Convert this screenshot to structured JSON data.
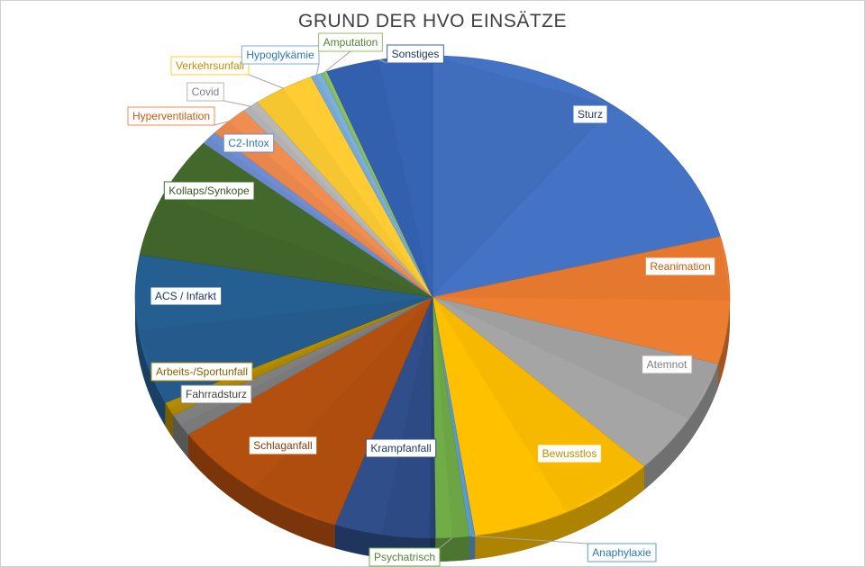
{
  "chart_data": {
    "type": "pie",
    "title": "GRUND DER HVO EINSÄTZE",
    "series": [
      {
        "name": "Sturz",
        "value": 69,
        "color": "#4472C4",
        "label_color": "#1F3864"
      },
      {
        "name": "Reanimation",
        "value": 28,
        "color": "#ED7D31",
        "label_color": "#C55A11"
      },
      {
        "name": "Atemnot",
        "value": 26,
        "color": "#A5A5A5",
        "label_color": "#7F7F7F"
      },
      {
        "name": "Bewusstlos",
        "value": 34,
        "color": "#FFC000",
        "label_color": "#BF8F00"
      },
      {
        "name": "Anaphylaxie",
        "value": 1,
        "color": "#5B9BD5",
        "label_color": "#2E75B6"
      },
      {
        "name": "Psychatrisch",
        "value": 6,
        "color": "#70AD47",
        "label_color": "#548235"
      },
      {
        "name": "",
        "value": 1,
        "color": "#264478",
        "label_color": "#264478"
      },
      {
        "name": "Krampfanfall",
        "value": 17,
        "color": "#2F4E8A",
        "label_color": "#1F3864"
      },
      {
        "name": "Schlaganfall",
        "value": 33,
        "color": "#B4500F",
        "label_color": "#843C0C"
      },
      {
        "name": "Fahrradsturz",
        "value": 5,
        "color": "#7F7F7F",
        "label_color": "#404040"
      },
      {
        "name": "Arbeits-/Sportunfall",
        "value": 3,
        "color": "#B38B00",
        "label_color": "#7F6000"
      },
      {
        "name": "ACS / Infarkt",
        "value": 33,
        "color": "#255E91",
        "label_color": "#1F3864"
      },
      {
        "name": "Kollaps/Synkope",
        "value": 27,
        "color": "#43682B",
        "label_color": "#375623"
      },
      {
        "name": "C2-Intox",
        "value": 3,
        "color": "#6F8ED1",
        "label_color": "#2E75B6"
      },
      {
        "name": "Hyperventilation",
        "value": 7,
        "color": "#F08D4F",
        "label_color": "#C55A11"
      },
      {
        "name": "Covid",
        "value": 3,
        "color": "#B7B7B7",
        "label_color": "#7F7F7F"
      },
      {
        "name": "Verkehrsunfall",
        "value": 11,
        "color": "#FFCD33",
        "label_color": "#BF8F00"
      },
      {
        "name": "Hypoglykämie",
        "value": 2,
        "color": "#7CAFDD",
        "label_color": "#2E75B6"
      },
      {
        "name": "Amputation",
        "value": 1,
        "color": "#8CC168",
        "label_color": "#548235"
      },
      {
        "name": "Sonstiges",
        "value": 19,
        "color": "#3564B4",
        "label_color": "#1F3864"
      }
    ],
    "legend": "none",
    "style": "3d"
  }
}
